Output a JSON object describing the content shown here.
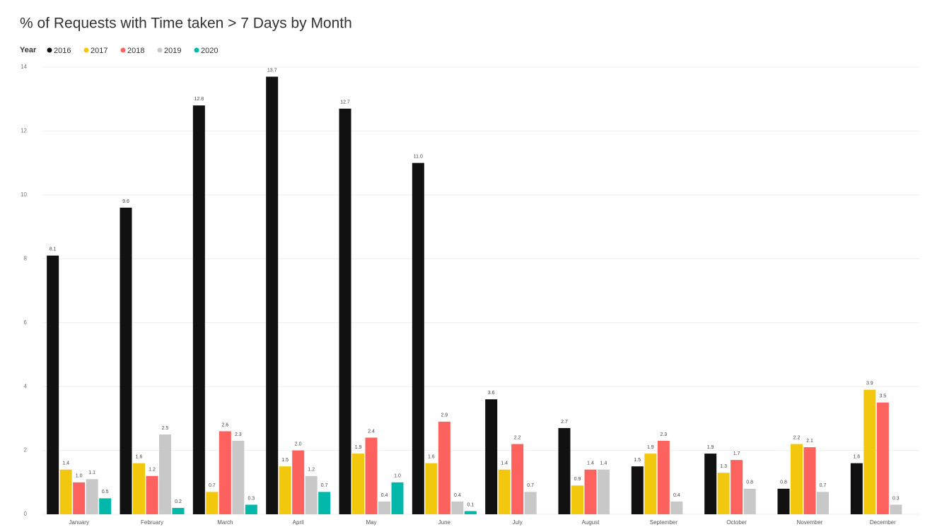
{
  "chart_data": {
    "type": "bar",
    "title": "% of Requests with Time taken > 7 Days by Month",
    "legend_title": "Year",
    "categories": [
      "January",
      "February",
      "March",
      "April",
      "May",
      "June",
      "July",
      "August",
      "September",
      "October",
      "November",
      "December"
    ],
    "series": [
      {
        "name": "2016",
        "color": "#111111",
        "values": [
          8.1,
          9.6,
          12.8,
          13.7,
          12.7,
          11.0,
          3.6,
          2.7,
          1.5,
          1.9,
          0.8,
          1.6
        ],
        "value_labels": [
          "8.1",
          "9.6",
          "12.8",
          "13.7",
          "12.7",
          "11.0",
          "3.6",
          "2.7",
          "1.5",
          "1.9",
          "0.8",
          "1.6"
        ]
      },
      {
        "name": "2017",
        "color": "#f2c80f",
        "values": [
          1.4,
          1.6,
          0.7,
          1.5,
          1.9,
          1.6,
          1.4,
          0.9,
          1.9,
          1.3,
          2.2,
          3.9
        ],
        "value_labels": [
          "1.4",
          "1.6",
          "0.7",
          "1.5",
          "1.9",
          "1.6",
          "1.4",
          "0.9",
          "1.9",
          "1.3",
          "2.2",
          "3.9"
        ]
      },
      {
        "name": "2018",
        "color": "#fd625e",
        "values": [
          1.0,
          1.2,
          2.6,
          2.0,
          2.4,
          2.9,
          2.2,
          1.4,
          2.3,
          1.7,
          2.1,
          3.5
        ],
        "value_labels": [
          "1.0",
          "1.2",
          "2.6",
          "2.0",
          "2.4",
          "2.9",
          "2.2",
          "1.4",
          "2.3",
          "1.7",
          "2.1",
          "3.5"
        ]
      },
      {
        "name": "2019",
        "color": "#c8c8c8",
        "values": [
          1.1,
          2.5,
          2.3,
          1.2,
          0.4,
          0.4,
          0.7,
          1.4,
          0.4,
          0.8,
          0.7,
          0.3
        ],
        "value_labels": [
          "1.1",
          "2.5",
          "2.3",
          "1.2",
          "0.4",
          "0.4",
          "0.7",
          "1.4",
          "0.4",
          "0.8",
          "0.7",
          "0.3"
        ]
      },
      {
        "name": "2020",
        "color": "#01b8aa",
        "values": [
          0.5,
          0.2,
          0.3,
          0.7,
          1.0,
          0.1,
          null,
          null,
          null,
          null,
          null,
          null
        ],
        "value_labels": [
          "0.5",
          "0.2",
          "0.3",
          "0.7",
          "1.0",
          "0.1",
          null,
          null,
          null,
          null,
          null,
          null
        ]
      }
    ],
    "ylim": [
      0,
      14
    ],
    "yticks": [
      0,
      2,
      4,
      6,
      8,
      10,
      12,
      14
    ],
    "grid": true
  }
}
